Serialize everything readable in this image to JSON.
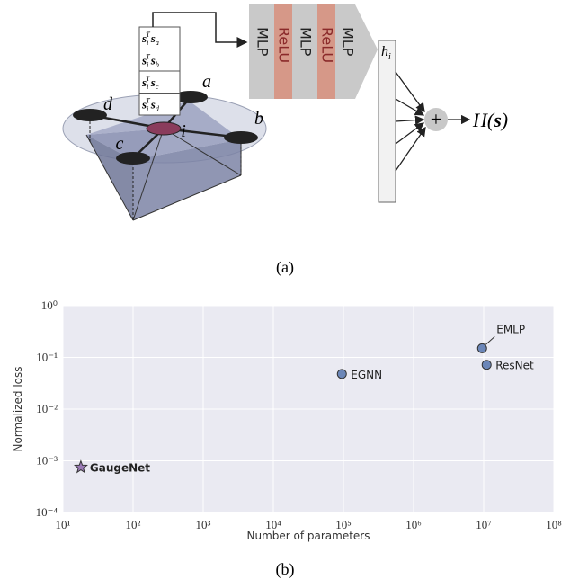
{
  "diagram": {
    "products": [
      [
        "s",
        "i",
        "T",
        "s",
        "a"
      ],
      [
        "s",
        "i",
        "T",
        "s",
        "b"
      ],
      [
        "s",
        "i",
        "T",
        "s",
        "c"
      ],
      [
        "s",
        "i",
        "T",
        "s",
        "d"
      ]
    ],
    "nodes": [
      "a",
      "b",
      "c",
      "d",
      "i"
    ],
    "blocks": [
      "MLP",
      "ReLU",
      "MLP",
      "ReLU",
      "MLP"
    ],
    "hidden": [
      "h",
      "i"
    ],
    "sum": "+",
    "output": [
      "H(",
      "s",
      ")"
    ],
    "caption": "(a)"
  },
  "chart_data": {
    "type": "scatter",
    "xlabel": "Number of parameters",
    "ylabel": "Normalized loss",
    "xscale": "log",
    "yscale": "log",
    "xlim": [
      10,
      100000000
    ],
    "ylim": [
      0.0001,
      1
    ],
    "xticks": [
      {
        "value": 10,
        "label": "10¹"
      },
      {
        "value": 100,
        "label": "10²"
      },
      {
        "value": 1000,
        "label": "10³"
      },
      {
        "value": 10000,
        "label": "10⁴"
      },
      {
        "value": 100000,
        "label": "10⁵"
      },
      {
        "value": 1000000,
        "label": "10⁶"
      },
      {
        "value": 10000000,
        "label": "10⁷"
      },
      {
        "value": 100000000,
        "label": "10⁸"
      }
    ],
    "yticks": [
      {
        "value": 0.0001,
        "label": "10⁻⁴"
      },
      {
        "value": 0.001,
        "label": "10⁻³"
      },
      {
        "value": 0.01,
        "label": "10⁻²"
      },
      {
        "value": 0.1,
        "label": "10⁻¹"
      },
      {
        "value": 1,
        "label": "10⁰"
      }
    ],
    "grid": true,
    "background": "#eaeaf2",
    "series": [
      {
        "name": "GaugeNet",
        "color": "#9b7bb6",
        "marker": "star",
        "x": [
          18
        ],
        "values": [
          0.00075
        ]
      },
      {
        "name": "EGNN",
        "color": "#6b86b8",
        "marker": "circle",
        "x": [
          95000
        ],
        "values": [
          0.048
        ]
      },
      {
        "name": "EMLP",
        "color": "#6b86b8",
        "marker": "circle",
        "x": [
          9500000
        ],
        "values": [
          0.15
        ]
      },
      {
        "name": "ResNet",
        "color": "#6b86b8",
        "marker": "circle",
        "x": [
          11000000
        ],
        "values": [
          0.072
        ]
      }
    ]
  },
  "chart_caption": "(b)"
}
